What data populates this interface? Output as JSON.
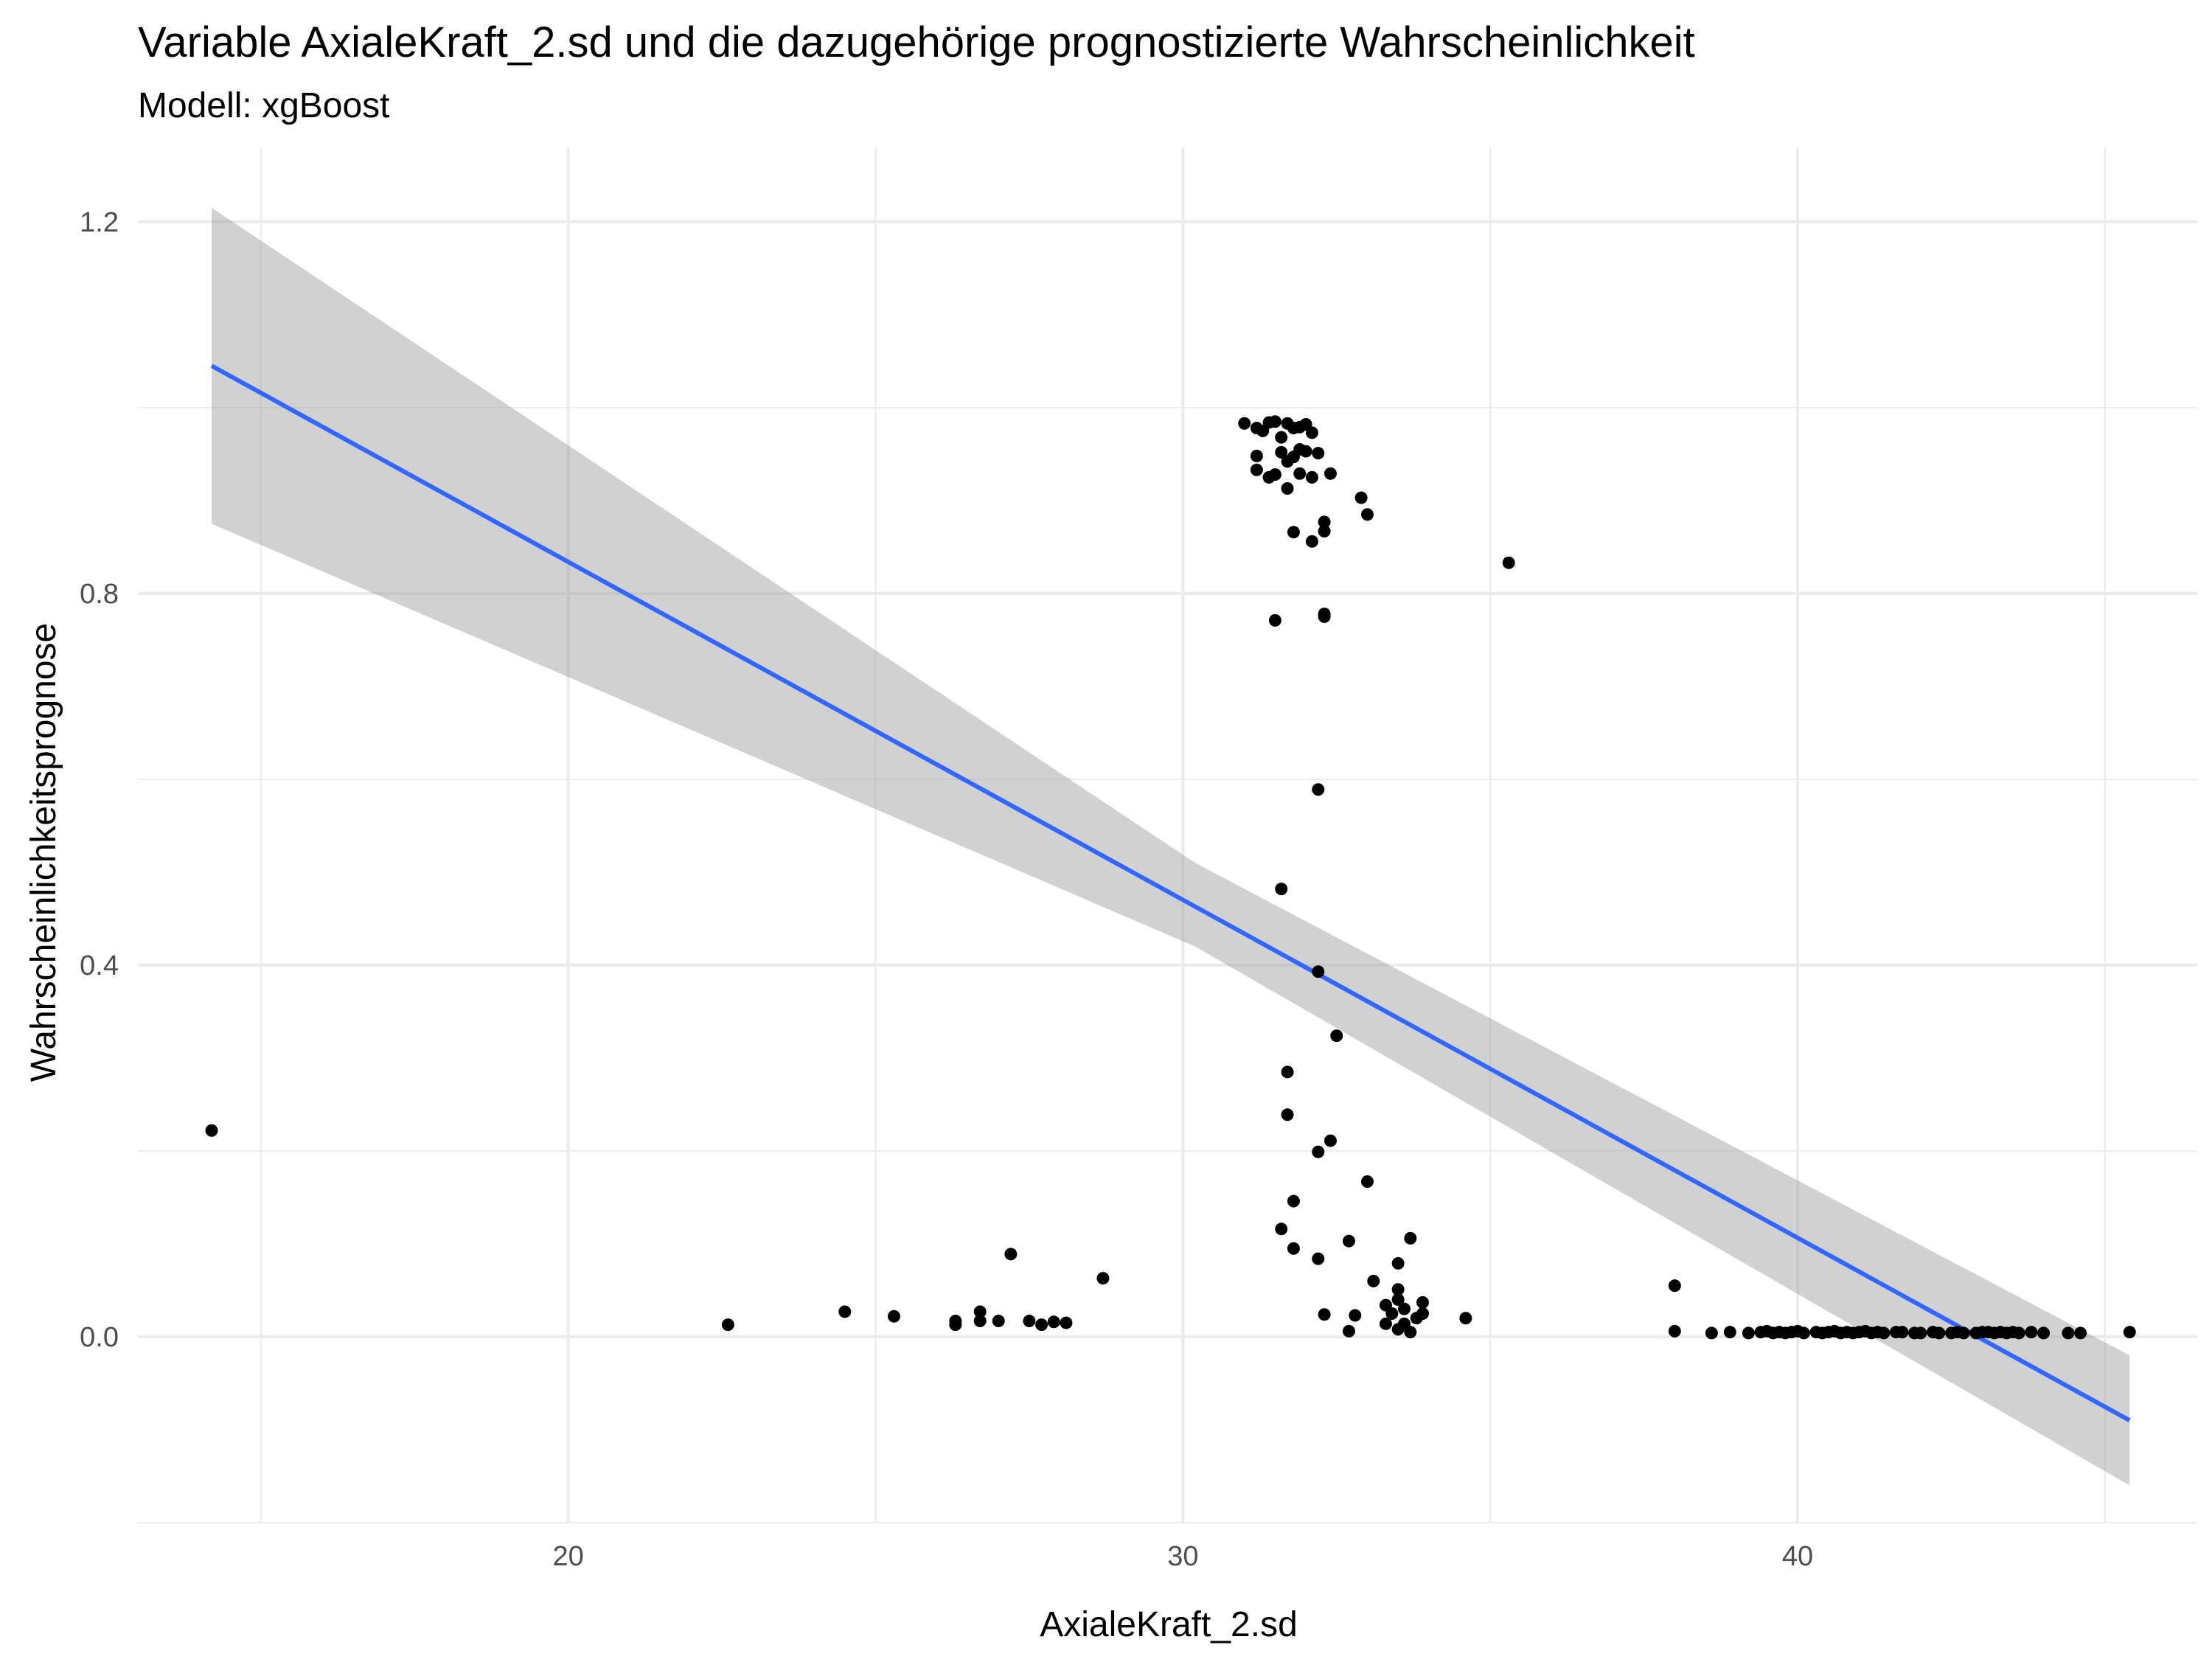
{
  "chart_data": {
    "type": "scatter",
    "title": "Variable AxialeKraft_2.sd und die dazugehörige prognostizierte Wahrscheinlichkeit",
    "subtitle": "Modell: xgBoost",
    "xlabel": "AxialeKraft_2.sd",
    "ylabel": "Wahrscheinlichkeitsprognose",
    "xlim": [
      13,
      46.5
    ],
    "ylim": [
      -0.2,
      1.28
    ],
    "x_ticks": [
      20,
      30,
      40
    ],
    "x_tick_labels": [
      "20",
      "30",
      "40"
    ],
    "y_ticks": [
      0.0,
      0.4,
      0.8,
      1.2
    ],
    "y_tick_labels": [
      "0.0",
      "0.4",
      "0.8",
      "1.2"
    ],
    "grid": true,
    "colors": {
      "points": "#000000",
      "fit_line": "#3366ff",
      "confidence_band": "#999999",
      "grid": "#ebebeb"
    },
    "fit_line": {
      "x": [
        14.2,
        45.4
      ],
      "y": [
        1.045,
        -0.09
      ]
    },
    "confidence_band": {
      "x": [
        14.2,
        30.2,
        45.4
      ],
      "upper": [
        1.215,
        0.51,
        -0.02
      ],
      "lower": [
        0.875,
        0.42,
        -0.16
      ]
    },
    "points": [
      {
        "x": 14.2,
        "y": 0.222
      },
      {
        "x": 22.6,
        "y": 0.013
      },
      {
        "x": 24.5,
        "y": 0.027
      },
      {
        "x": 25.3,
        "y": 0.022
      },
      {
        "x": 26.3,
        "y": 0.013
      },
      {
        "x": 26.3,
        "y": 0.017
      },
      {
        "x": 26.7,
        "y": 0.027
      },
      {
        "x": 26.7,
        "y": 0.017
      },
      {
        "x": 27.0,
        "y": 0.017
      },
      {
        "x": 27.2,
        "y": 0.089
      },
      {
        "x": 27.5,
        "y": 0.017
      },
      {
        "x": 27.7,
        "y": 0.013
      },
      {
        "x": 27.9,
        "y": 0.016
      },
      {
        "x": 28.1,
        "y": 0.015
      },
      {
        "x": 28.7,
        "y": 0.063
      },
      {
        "x": 31.0,
        "y": 0.983
      },
      {
        "x": 31.2,
        "y": 0.978
      },
      {
        "x": 31.3,
        "y": 0.975
      },
      {
        "x": 31.4,
        "y": 0.984
      },
      {
        "x": 31.5,
        "y": 0.985
      },
      {
        "x": 31.6,
        "y": 0.968
      },
      {
        "x": 31.7,
        "y": 0.983
      },
      {
        "x": 31.8,
        "y": 0.978
      },
      {
        "x": 31.9,
        "y": 0.979
      },
      {
        "x": 32.0,
        "y": 0.982
      },
      {
        "x": 32.1,
        "y": 0.973
      },
      {
        "x": 31.2,
        "y": 0.948
      },
      {
        "x": 31.2,
        "y": 0.933
      },
      {
        "x": 31.4,
        "y": 0.925
      },
      {
        "x": 31.5,
        "y": 0.928
      },
      {
        "x": 31.6,
        "y": 0.952
      },
      {
        "x": 31.7,
        "y": 0.942
      },
      {
        "x": 31.7,
        "y": 0.913
      },
      {
        "x": 31.8,
        "y": 0.947
      },
      {
        "x": 31.9,
        "y": 0.955
      },
      {
        "x": 31.9,
        "y": 0.929
      },
      {
        "x": 32.0,
        "y": 0.953
      },
      {
        "x": 32.1,
        "y": 0.925
      },
      {
        "x": 32.2,
        "y": 0.951
      },
      {
        "x": 32.4,
        "y": 0.929
      },
      {
        "x": 32.9,
        "y": 0.903
      },
      {
        "x": 33.0,
        "y": 0.885
      },
      {
        "x": 31.8,
        "y": 0.866
      },
      {
        "x": 32.3,
        "y": 0.877
      },
      {
        "x": 32.3,
        "y": 0.867
      },
      {
        "x": 32.1,
        "y": 0.856
      },
      {
        "x": 35.3,
        "y": 0.833
      },
      {
        "x": 31.5,
        "y": 0.771
      },
      {
        "x": 32.3,
        "y": 0.775
      },
      {
        "x": 32.3,
        "y": 0.778
      },
      {
        "x": 32.2,
        "y": 0.589
      },
      {
        "x": 31.6,
        "y": 0.482
      },
      {
        "x": 32.2,
        "y": 0.393
      },
      {
        "x": 32.5,
        "y": 0.324
      },
      {
        "x": 31.7,
        "y": 0.285
      },
      {
        "x": 31.7,
        "y": 0.239
      },
      {
        "x": 32.4,
        "y": 0.211
      },
      {
        "x": 32.2,
        "y": 0.199
      },
      {
        "x": 33.0,
        "y": 0.167
      },
      {
        "x": 31.8,
        "y": 0.146
      },
      {
        "x": 31.6,
        "y": 0.116
      },
      {
        "x": 31.8,
        "y": 0.095
      },
      {
        "x": 32.7,
        "y": 0.103
      },
      {
        "x": 32.2,
        "y": 0.084
      },
      {
        "x": 33.7,
        "y": 0.106
      },
      {
        "x": 33.5,
        "y": 0.079
      },
      {
        "x": 33.1,
        "y": 0.06
      },
      {
        "x": 33.5,
        "y": 0.051
      },
      {
        "x": 33.5,
        "y": 0.04
      },
      {
        "x": 33.3,
        "y": 0.034
      },
      {
        "x": 33.6,
        "y": 0.03
      },
      {
        "x": 33.9,
        "y": 0.037
      },
      {
        "x": 33.4,
        "y": 0.025
      },
      {
        "x": 33.8,
        "y": 0.02
      },
      {
        "x": 33.9,
        "y": 0.025
      },
      {
        "x": 34.6,
        "y": 0.02
      },
      {
        "x": 32.3,
        "y": 0.024
      },
      {
        "x": 32.8,
        "y": 0.023
      },
      {
        "x": 33.3,
        "y": 0.014
      },
      {
        "x": 33.6,
        "y": 0.014
      },
      {
        "x": 33.5,
        "y": 0.008
      },
      {
        "x": 33.7,
        "y": 0.005
      },
      {
        "x": 32.7,
        "y": 0.006
      },
      {
        "x": 38.0,
        "y": 0.055
      },
      {
        "x": 38.0,
        "y": 0.006
      },
      {
        "x": 38.6,
        "y": 0.004
      },
      {
        "x": 38.9,
        "y": 0.005
      },
      {
        "x": 39.2,
        "y": 0.004
      },
      {
        "x": 39.4,
        "y": 0.005
      },
      {
        "x": 39.5,
        "y": 0.006
      },
      {
        "x": 39.6,
        "y": 0.004
      },
      {
        "x": 39.7,
        "y": 0.005
      },
      {
        "x": 39.8,
        "y": 0.004
      },
      {
        "x": 39.9,
        "y": 0.005
      },
      {
        "x": 40.0,
        "y": 0.006
      },
      {
        "x": 40.1,
        "y": 0.004
      },
      {
        "x": 40.3,
        "y": 0.005
      },
      {
        "x": 40.4,
        "y": 0.004
      },
      {
        "x": 40.5,
        "y": 0.005
      },
      {
        "x": 40.6,
        "y": 0.006
      },
      {
        "x": 40.7,
        "y": 0.004
      },
      {
        "x": 40.8,
        "y": 0.005
      },
      {
        "x": 40.9,
        "y": 0.004
      },
      {
        "x": 41.0,
        "y": 0.005
      },
      {
        "x": 41.1,
        "y": 0.006
      },
      {
        "x": 41.2,
        "y": 0.004
      },
      {
        "x": 41.3,
        "y": 0.005
      },
      {
        "x": 41.4,
        "y": 0.004
      },
      {
        "x": 41.6,
        "y": 0.005
      },
      {
        "x": 41.7,
        "y": 0.005
      },
      {
        "x": 41.9,
        "y": 0.004
      },
      {
        "x": 42.0,
        "y": 0.004
      },
      {
        "x": 42.2,
        "y": 0.005
      },
      {
        "x": 42.3,
        "y": 0.004
      },
      {
        "x": 42.5,
        "y": 0.004
      },
      {
        "x": 42.6,
        "y": 0.005
      },
      {
        "x": 42.7,
        "y": 0.004
      },
      {
        "x": 42.9,
        "y": 0.004
      },
      {
        "x": 43.0,
        "y": 0.005
      },
      {
        "x": 43.1,
        "y": 0.005
      },
      {
        "x": 43.2,
        "y": 0.004
      },
      {
        "x": 43.3,
        "y": 0.005
      },
      {
        "x": 43.4,
        "y": 0.004
      },
      {
        "x": 43.5,
        "y": 0.005
      },
      {
        "x": 43.6,
        "y": 0.004
      },
      {
        "x": 43.8,
        "y": 0.005
      },
      {
        "x": 44.0,
        "y": 0.004
      },
      {
        "x": 44.4,
        "y": 0.004
      },
      {
        "x": 44.6,
        "y": 0.004
      },
      {
        "x": 45.4,
        "y": 0.005
      }
    ]
  }
}
